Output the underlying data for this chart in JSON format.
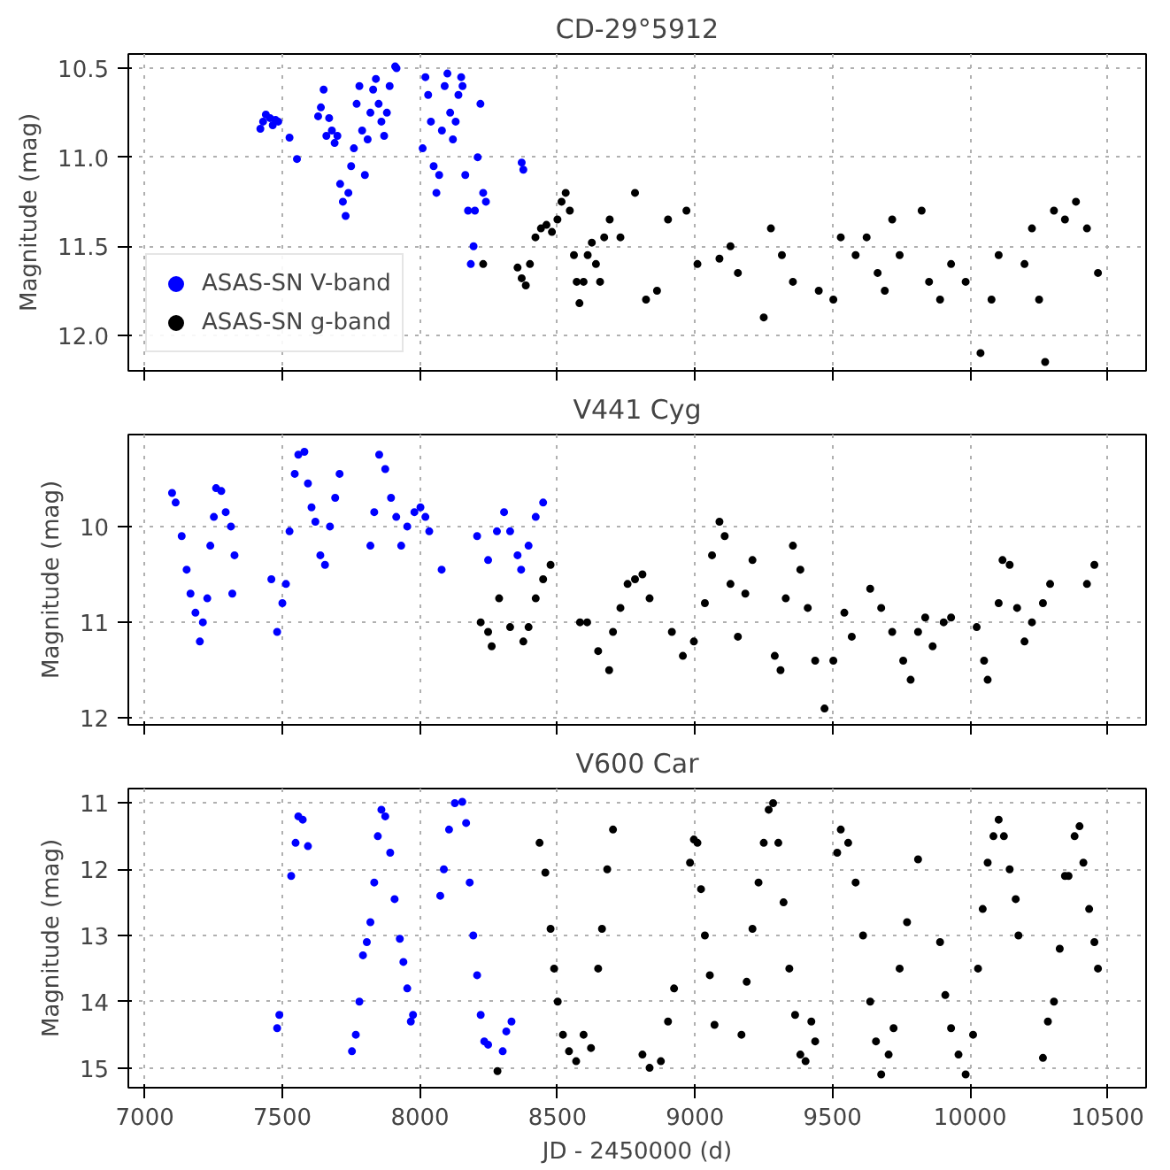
{
  "chart_data": [
    {
      "type": "scatter",
      "title": "CD-29°5912",
      "ylabel": "Magnitude (mag)",
      "xlim": [
        6940,
        10640
      ],
      "xticks": [
        7000,
        7500,
        8000,
        8500,
        9000,
        9500,
        10000,
        10500
      ],
      "ylim": [
        12.2,
        10.42
      ],
      "yticks": [
        10.5,
        {
          "value": 11,
          "label": "11.0"
        },
        11.5,
        {
          "value": 12,
          "label": "12.0"
        }
      ],
      "tick_labels": "y",
      "grid": true,
      "legend": "bottom left",
      "marker": "circle",
      "series": [
        {
          "name": "ASAS-SN V-band",
          "color": "#0000ff",
          "x": [
            7420,
            7430,
            7440,
            7455,
            7465,
            7475,
            7485,
            7526,
            7553,
            7630,
            7640,
            7650,
            7660,
            7670,
            7680,
            7690,
            7700,
            7710,
            7720,
            7730,
            7740,
            7750,
            7760,
            7770,
            7780,
            7790,
            7800,
            7810,
            7820,
            7830,
            7840,
            7850,
            7860,
            7870,
            7880,
            7890,
            7910,
            7915,
            8010,
            8020,
            8030,
            8040,
            8050,
            8060,
            8070,
            8080,
            8090,
            8100,
            8110,
            8120,
            8130,
            8140,
            8150,
            8155,
            8165,
            8175,
            8185,
            8195,
            8200,
            8210,
            8220,
            8230,
            8240,
            8370,
            8376
          ],
          "values": [
            10.84,
            10.8,
            10.76,
            10.78,
            10.82,
            10.79,
            10.8,
            10.89,
            11.01,
            10.77,
            10.72,
            10.62,
            10.88,
            10.78,
            10.85,
            10.92,
            10.88,
            11.15,
            11.25,
            11.33,
            11.2,
            11.05,
            10.95,
            10.7,
            10.6,
            10.85,
            11.1,
            10.9,
            10.75,
            10.62,
            10.56,
            10.7,
            10.8,
            10.88,
            10.75,
            10.6,
            10.49,
            10.5,
            10.95,
            10.55,
            10.65,
            10.8,
            11.05,
            11.2,
            11.1,
            10.85,
            10.6,
            10.53,
            10.75,
            10.9,
            10.8,
            10.65,
            10.55,
            10.6,
            11.1,
            11.3,
            11.6,
            11.5,
            11.3,
            11.0,
            10.7,
            11.2,
            11.25,
            11.03,
            11.07
          ]
        },
        {
          "name": "ASAS-SN g-band",
          "color": "#000000",
          "x": [
            8230,
            8355,
            8370,
            8385,
            8400,
            8420,
            8440,
            8460,
            8480,
            8500,
            8515,
            8530,
            8545,
            8560,
            8570,
            8580,
            8595,
            8610,
            8625,
            8640,
            8655,
            8670,
            8690,
            8729,
            8782,
            8822,
            8862,
            8902,
            8969,
            9009,
            9089,
            9129,
            9156,
            9250,
            9276,
            9316,
            9356,
            9450,
            9503,
            9530,
            9584,
            9624,
            9664,
            9690,
            9717,
            9744,
            9824,
            9851,
            9891,
            9931,
            9984,
            10038,
            10078,
            10104,
            10198,
            10225,
            10251,
            10273,
            10305,
            10345,
            10385,
            10425,
            10465
          ],
          "values": [
            11.6,
            11.62,
            11.68,
            11.72,
            11.6,
            11.45,
            11.4,
            11.38,
            11.42,
            11.35,
            11.25,
            11.2,
            11.3,
            11.55,
            11.7,
            11.82,
            11.7,
            11.55,
            11.48,
            11.6,
            11.7,
            11.45,
            11.35,
            11.45,
            11.2,
            11.8,
            11.75,
            11.35,
            11.3,
            11.6,
            11.57,
            11.5,
            11.65,
            11.9,
            11.4,
            11.55,
            11.7,
            11.75,
            11.8,
            11.45,
            11.55,
            11.45,
            11.65,
            11.75,
            11.35,
            11.55,
            11.3,
            11.7,
            11.8,
            11.6,
            11.7,
            12.1,
            11.8,
            11.55,
            11.6,
            11.4,
            11.8,
            12.15,
            11.3,
            11.35,
            11.25,
            11.4,
            11.65
          ]
        }
      ]
    },
    {
      "type": "scatter",
      "title": "V441 Cyg",
      "ylabel": "Magnitude (mag)",
      "xlim": [
        6940,
        10640
      ],
      "xticks": [
        7000,
        7500,
        8000,
        8500,
        9000,
        9500,
        10000,
        10500
      ],
      "ylim": [
        12.07,
        9.04
      ],
      "yticks": [
        10,
        11,
        12
      ],
      "tick_labels": "y",
      "grid": true,
      "marker": "circle",
      "series": [
        {
          "color": "#0000ff",
          "x": [
            7099,
            7112,
            7134,
            7152,
            7166,
            7184,
            7200,
            7211,
            7227,
            7238,
            7251,
            7259,
            7278,
            7294,
            7313,
            7326,
            7318,
            7460,
            7481,
            7500,
            7513,
            7526,
            7545,
            7558,
            7580,
            7593,
            7606,
            7620,
            7638,
            7655,
            7673,
            7692,
            7708,
            7820,
            7834,
            7852,
            7874,
            7895,
            7914,
            7932,
            7954,
            7980,
            8002,
            8020,
            8034,
            8079,
            8208,
            8248,
            8280,
            8306,
            8328,
            8355,
            8368,
            8395,
            8421,
            8448
          ],
          "values": [
            9.65,
            9.75,
            10.1,
            10.45,
            10.7,
            10.9,
            11.2,
            11.0,
            10.75,
            10.2,
            9.9,
            9.6,
            9.63,
            9.85,
            10.0,
            10.3,
            10.7,
            10.55,
            11.1,
            10.8,
            10.6,
            10.05,
            9.45,
            9.25,
            9.22,
            9.55,
            9.8,
            9.95,
            10.3,
            10.4,
            10.0,
            9.7,
            9.45,
            10.2,
            9.85,
            9.25,
            9.4,
            9.7,
            9.9,
            10.2,
            10.0,
            9.85,
            9.8,
            9.9,
            10.05,
            10.45,
            10.1,
            10.35,
            10.05,
            9.85,
            10.05,
            10.3,
            10.45,
            10.2,
            9.9,
            9.75
          ]
        },
        {
          "color": "#000000",
          "x": [
            8221,
            8248,
            8261,
            8288,
            8328,
            8376,
            8395,
            8421,
            8448,
            8475,
            8582,
            8608,
            8648,
            8688,
            8702,
            8729,
            8755,
            8782,
            8809,
            8835,
            8916,
            8956,
            8996,
            9036,
            9062,
            9089,
            9108,
            9129,
            9156,
            9183,
            9209,
            9290,
            9311,
            9330,
            9356,
            9383,
            9410,
            9437,
            9471,
            9503,
            9543,
            9570,
            9637,
            9677,
            9717,
            9757,
            9784,
            9811,
            9837,
            9864,
            9904,
            9931,
            10024,
            10051,
            10064,
            10104,
            10118,
            10144,
            10171,
            10198,
            10225,
            10265,
            10291,
            10425,
            10452
          ],
          "values": [
            11.0,
            11.1,
            11.25,
            10.75,
            11.05,
            11.2,
            11.05,
            10.75,
            10.55,
            10.4,
            11.0,
            11.0,
            11.3,
            11.5,
            11.1,
            10.85,
            10.6,
            10.55,
            10.5,
            10.75,
            11.1,
            11.35,
            11.2,
            10.8,
            10.3,
            9.95,
            10.1,
            10.6,
            11.15,
            10.7,
            10.35,
            11.35,
            11.5,
            10.75,
            10.2,
            10.45,
            10.85,
            11.4,
            11.9,
            11.4,
            10.9,
            11.15,
            10.65,
            10.85,
            11.1,
            11.4,
            11.6,
            11.1,
            10.95,
            11.25,
            11.0,
            10.95,
            11.05,
            11.4,
            11.6,
            10.8,
            10.35,
            10.4,
            10.85,
            11.2,
            11.0,
            10.8,
            10.6,
            10.6,
            10.4
          ]
        }
      ]
    },
    {
      "type": "scatter",
      "title": "V600 Car",
      "xlabel": "JD - 2450000 (d)",
      "ylabel": "Magnitude (mag)",
      "xlim": [
        6940,
        10640
      ],
      "xticks": [
        7000,
        7500,
        8000,
        8500,
        9000,
        9500,
        10000,
        10500
      ],
      "ylim": [
        15.3,
        10.78
      ],
      "yticks": [
        11,
        12,
        13,
        14,
        15
      ],
      "grid": true,
      "marker": "circle",
      "series": [
        {
          "color": "#0000ff",
          "x": [
            7481,
            7489,
            7532,
            7548,
            7558,
            7574,
            7593,
            7753,
            7767,
            7780,
            7793,
            7807,
            7820,
            7834,
            7847,
            7860,
            7874,
            7892,
            7908,
            7927,
            7940,
            7954,
            7967,
            7975,
            8074,
            8087,
            8106,
            8127,
            8154,
            8168,
            8181,
            8194,
            8208,
            8221,
            8234,
            8248,
            8301,
            8314,
            8333
          ],
          "values": [
            14.4,
            14.2,
            12.1,
            11.6,
            11.2,
            11.25,
            11.65,
            14.75,
            14.5,
            14.0,
            13.3,
            13.1,
            12.8,
            12.2,
            11.5,
            11.1,
            11.2,
            11.75,
            12.45,
            13.05,
            13.4,
            13.8,
            14.3,
            14.2,
            12.4,
            12.0,
            11.4,
            11.0,
            10.98,
            11.3,
            12.2,
            13.0,
            13.6,
            14.2,
            14.6,
            14.65,
            14.75,
            14.45,
            14.3
          ]
        },
        {
          "color": "#000000",
          "x": [
            8282,
            8435,
            8456,
            8475,
            8488,
            8501,
            8520,
            8542,
            8568,
            8595,
            8622,
            8648,
            8662,
            8681,
            8702,
            8809,
            8835,
            8876,
            8902,
            8924,
            8982,
            8996,
            9009,
            9022,
            9036,
            9054,
            9071,
            9169,
            9188,
            9209,
            9231,
            9250,
            9268,
            9284,
            9303,
            9322,
            9343,
            9364,
            9383,
            9402,
            9423,
            9437,
            9517,
            9530,
            9557,
            9584,
            9611,
            9637,
            9658,
            9677,
            9704,
            9722,
            9744,
            9771,
            9811,
            9891,
            9910,
            9931,
            9958,
            9984,
            10011,
            10029,
            10046,
            10064,
            10085,
            10104,
            10123,
            10144,
            10166,
            10176,
            10265,
            10283,
            10305,
            10326,
            10345,
            10358,
            10380,
            10398,
            10412,
            10433,
            10452,
            10465
          ],
          "values": [
            15.05,
            11.6,
            12.05,
            12.9,
            13.5,
            14.0,
            14.5,
            14.75,
            14.9,
            14.5,
            14.7,
            13.5,
            12.9,
            12.0,
            11.4,
            14.8,
            15.0,
            14.9,
            14.3,
            13.8,
            11.9,
            11.55,
            11.6,
            12.3,
            13.0,
            13.6,
            14.35,
            14.5,
            13.7,
            12.9,
            12.2,
            11.6,
            11.1,
            11.0,
            11.6,
            12.5,
            13.5,
            14.2,
            14.8,
            14.9,
            14.3,
            14.6,
            11.75,
            11.4,
            11.6,
            12.2,
            13.0,
            14.0,
            14.6,
            15.1,
            14.8,
            14.4,
            13.5,
            12.8,
            11.85,
            13.1,
            13.9,
            14.4,
            14.8,
            15.1,
            14.5,
            13.5,
            12.6,
            11.9,
            11.5,
            11.25,
            11.5,
            12.0,
            12.45,
            13.0,
            14.85,
            14.3,
            14.0,
            13.2,
            12.1,
            12.1,
            11.5,
            11.35,
            11.9,
            12.6,
            13.1,
            13.5
          ]
        }
      ]
    }
  ]
}
